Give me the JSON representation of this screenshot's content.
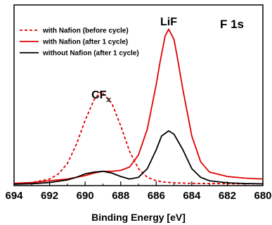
{
  "chart_data": {
    "type": "line",
    "title": "F 1s",
    "xlabel": "Binding Energy [eV]",
    "ylabel": "",
    "xlim": [
      694,
      680
    ],
    "x_reversed": true,
    "x_ticks": [
      694,
      692,
      690,
      688,
      686,
      684,
      682,
      680
    ],
    "y_ticks_labeled": false,
    "grid": false,
    "legend_position": "top-left",
    "annotations": [
      {
        "text": "LiF",
        "x": 685.3
      },
      {
        "text": "CF",
        "subscript": "x",
        "x": 689.1
      }
    ],
    "series": [
      {
        "name": "with Nafion (before cycle)",
        "color": "#e00000",
        "style": "dashed",
        "x": [
          694,
          693,
          692,
          691.5,
          691,
          690.5,
          690,
          689.5,
          689.1,
          688.5,
          688,
          687.5,
          687,
          686.5,
          686,
          685.5,
          685,
          684,
          683,
          682,
          681,
          680
        ],
        "y": [
          0.005,
          0.01,
          0.03,
          0.06,
          0.12,
          0.23,
          0.37,
          0.49,
          0.54,
          0.47,
          0.34,
          0.19,
          0.09,
          0.04,
          0.02,
          0.012,
          0.008,
          0.005,
          0.004,
          0.003,
          0.003,
          0.003
        ]
      },
      {
        "name": "with Nafion (after 1 cycle)",
        "color": "#e00000",
        "style": "solid",
        "x": [
          694,
          693,
          692,
          691,
          690,
          689.5,
          689,
          688.5,
          688,
          687.5,
          687,
          686.5,
          686,
          685.8,
          685.5,
          685.3,
          685,
          684.8,
          684.5,
          684,
          683.5,
          683,
          682,
          681,
          680
        ],
        "y": [
          0.005,
          0.01,
          0.02,
          0.03,
          0.05,
          0.065,
          0.075,
          0.075,
          0.08,
          0.1,
          0.17,
          0.32,
          0.58,
          0.7,
          0.86,
          0.9,
          0.84,
          0.73,
          0.55,
          0.28,
          0.13,
          0.07,
          0.045,
          0.035,
          0.03
        ]
      },
      {
        "name": "without Nafion (after 1 cycle)",
        "color": "#000000",
        "style": "solid",
        "x": [
          694,
          693,
          692,
          691,
          690.5,
          690,
          689.5,
          689,
          688.5,
          688,
          687.5,
          687,
          686.5,
          686,
          685.7,
          685.3,
          685,
          684.5,
          684,
          683.5,
          683,
          682,
          681,
          680
        ],
        "y": [
          0.0,
          0.003,
          0.01,
          0.025,
          0.04,
          0.06,
          0.07,
          0.075,
          0.065,
          0.045,
          0.03,
          0.04,
          0.09,
          0.2,
          0.28,
          0.31,
          0.29,
          0.2,
          0.09,
          0.04,
          0.02,
          0.008,
          0.004,
          0.002
        ]
      }
    ]
  }
}
